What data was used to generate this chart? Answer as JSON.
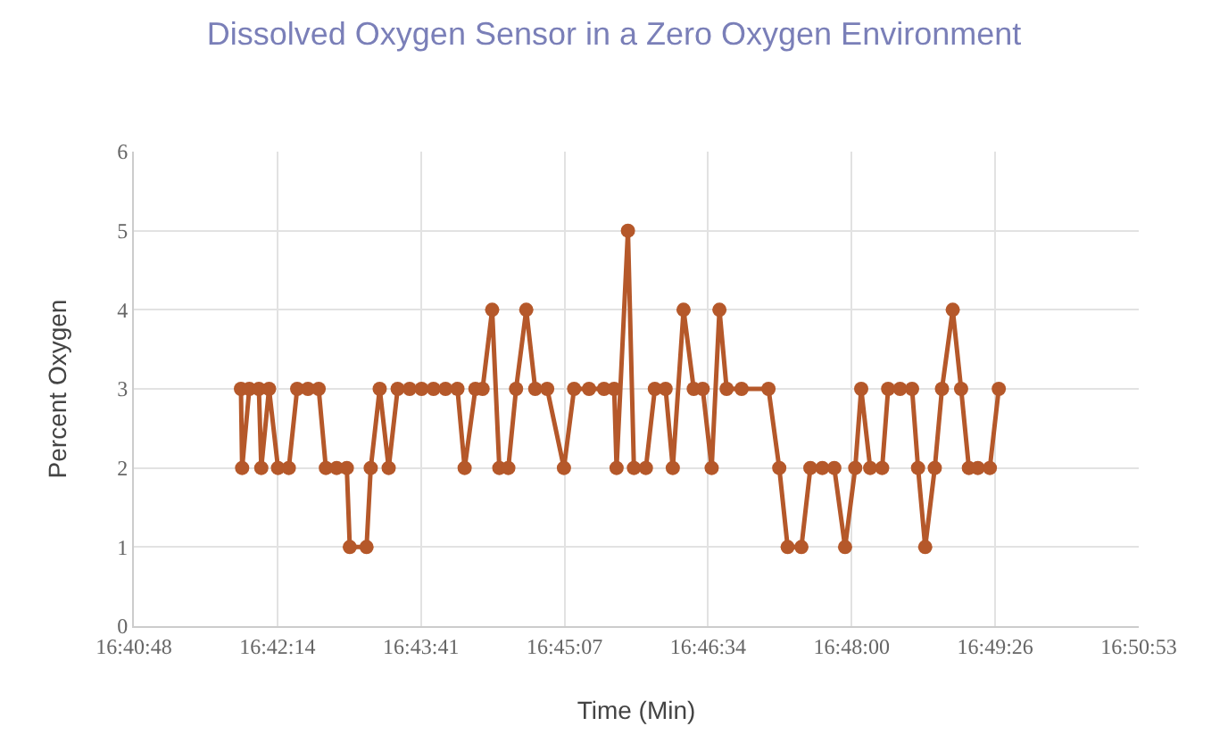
{
  "chart_data": {
    "type": "line",
    "title": "Dissolved Oxygen Sensor in a Zero Oxygen Environment",
    "xlabel": "Time (Min)",
    "ylabel": "Percent Oxygen",
    "x": [
      16.6979,
      16.6981,
      16.6993,
      16.7009,
      16.7013,
      16.7026,
      16.7041,
      16.7059,
      16.7073,
      16.7091,
      16.7109,
      16.7121,
      16.7139,
      16.7156,
      16.7161,
      16.7189,
      16.7196,
      16.7211,
      16.7226,
      16.7241,
      16.7261,
      16.7281,
      16.7301,
      16.7321,
      16.7341,
      16.7353,
      16.7371,
      16.7383,
      16.7399,
      16.7411,
      16.7426,
      16.7439,
      16.7456,
      16.7471,
      16.7491,
      16.7519,
      16.7536,
      16.7561,
      16.7586,
      16.7603,
      16.7607,
      16.7626,
      16.7636,
      16.7656,
      16.7671,
      16.7689,
      16.7701,
      16.7719,
      16.7736,
      16.7751,
      16.7766,
      16.7779,
      16.7791,
      16.7816,
      16.7861,
      16.7879,
      16.7893,
      16.7916,
      16.7931,
      16.7951,
      16.7971,
      16.7989,
      16.8006,
      16.8016,
      16.8031,
      16.8051,
      16.8061,
      16.8081,
      16.8101,
      16.8111,
      16.8123,
      16.8139,
      16.8151,
      16.8169,
      16.8183,
      16.8196,
      16.8211,
      16.8231,
      16.8246
    ],
    "series": [
      {
        "color": "#b5582a",
        "values": [
          3,
          2,
          3,
          3,
          2,
          3,
          2,
          2,
          3,
          3,
          3,
          2,
          2,
          2,
          1,
          1,
          2,
          3,
          2,
          3,
          3,
          3,
          3,
          3,
          3,
          2,
          3,
          3,
          4,
          2,
          2,
          3,
          4,
          3,
          3,
          2,
          3,
          3,
          3,
          3,
          2,
          5,
          2,
          2,
          3,
          3,
          2,
          4,
          3,
          3,
          2,
          4,
          3,
          3,
          3,
          2,
          1,
          1,
          2,
          2,
          2,
          1,
          2,
          3,
          2,
          2,
          3,
          3,
          3,
          2,
          1,
          2,
          3,
          4,
          3,
          2,
          2,
          2,
          3
        ]
      }
    ],
    "xlim": [
      16.68,
      16.848
    ],
    "xticks": [
      {
        "value": 16.68,
        "label": "16:40:48"
      },
      {
        "value": 16.704,
        "label": "16:42:14"
      },
      {
        "value": 16.728,
        "label": "16:43:41"
      },
      {
        "value": 16.752,
        "label": "16:45:07"
      },
      {
        "value": 16.776,
        "label": "16:46:34"
      },
      {
        "value": 16.8,
        "label": "16:48:00"
      },
      {
        "value": 16.824,
        "label": "16:49:26"
      },
      {
        "value": 16.848,
        "label": "16:50:53"
      }
    ],
    "ylim": [
      0,
      6
    ],
    "yticks": [
      0,
      1,
      2,
      3,
      4,
      5,
      6
    ],
    "grid": true,
    "marker": "circle",
    "line_style": "solid"
  }
}
